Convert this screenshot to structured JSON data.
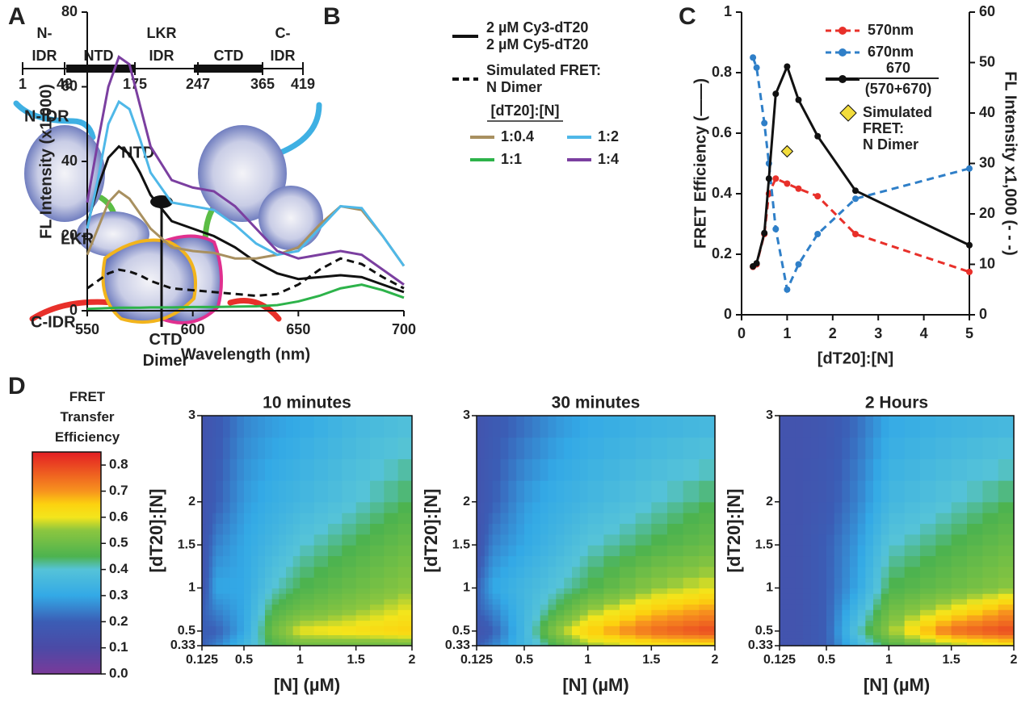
{
  "panel_labels": [
    "A",
    "B",
    "C",
    "D"
  ],
  "diagram": {
    "positions": [
      1,
      49,
      175,
      247,
      365,
      419
    ],
    "regions": [
      {
        "label": "N-\nIDR",
        "color": "#3fb0e3"
      },
      {
        "label": "NTD",
        "color": "#111111"
      },
      {
        "label": "LKR\nIDR",
        "color": "#5bbd45"
      },
      {
        "label": "CTD",
        "color": "#111111"
      },
      {
        "label": "C-\nIDR",
        "color": "#e8302a"
      }
    ],
    "structure_labels": [
      {
        "text": "N-IDR",
        "color": "#3fb0e3"
      },
      {
        "text": "NTD",
        "color": "#111111"
      },
      {
        "text": "LKR",
        "color": "#5bbd45"
      },
      {
        "text": "C-IDR",
        "color": "#e8302a"
      },
      {
        "text": "CTD\nDimer",
        "color": "#111111"
      }
    ]
  },
  "chart_data": [
    {
      "type": "line",
      "xlabel": "Wavelength (nm)",
      "ylabel": "FL Intensity (x1,000)",
      "xlim": [
        550,
        700
      ],
      "xticks": [
        550,
        600,
        650,
        700
      ],
      "ylim": [
        0,
        80
      ],
      "yticks": [
        0,
        20,
        40,
        60,
        80
      ],
      "legend_title": "[dT20]:[N]",
      "x": [
        550,
        555,
        560,
        565,
        570,
        575,
        580,
        590,
        600,
        610,
        620,
        630,
        640,
        650,
        660,
        670,
        680,
        690,
        700
      ],
      "series": [
        {
          "name": "2 µM Cy3-dT20\n2 µM Cy5-dT20",
          "color": "#111111",
          "style": "solid",
          "values": [
            23,
            33,
            41,
            44,
            42,
            37,
            31,
            24,
            22,
            20,
            17,
            13,
            10,
            8.5,
            9,
            9.5,
            9,
            7,
            5
          ]
        },
        {
          "name": "Simulated FRET:\nN Dimer",
          "color": "#111111",
          "style": "dashed",
          "values": [
            6,
            8,
            10,
            11,
            10.5,
            9.5,
            8,
            6,
            5.5,
            5,
            4.5,
            4,
            4.5,
            7,
            11,
            14,
            12.5,
            9,
            6
          ]
        },
        {
          "name": "1:0.4",
          "color": "#a89060",
          "style": "solid",
          "values": [
            15,
            22,
            29,
            32,
            30,
            26,
            22,
            17,
            16,
            15.5,
            14,
            14,
            15,
            17,
            23,
            28,
            27,
            20,
            12
          ]
        },
        {
          "name": "1:2",
          "color": "#4fb8e8",
          "style": "solid",
          "values": [
            22,
            35,
            50,
            56,
            54,
            46,
            37,
            29,
            28,
            27,
            23,
            18,
            15,
            16,
            22,
            28,
            27.5,
            20,
            12
          ]
        },
        {
          "name": "1:1",
          "color": "#2db34a",
          "style": "solid",
          "values": [
            0.5,
            0.6,
            0.7,
            0.8,
            0.8,
            0.8,
            0.9,
            0.9,
            1,
            1,
            1.1,
            1.2,
            1.5,
            2.5,
            4,
            6,
            7,
            5.5,
            3.5
          ]
        },
        {
          "name": "1:4",
          "color": "#7b3fa0",
          "style": "solid",
          "values": [
            29,
            45,
            60,
            68,
            66,
            55,
            44,
            35,
            33,
            32,
            28,
            22,
            16,
            14,
            15,
            16,
            15,
            11,
            7
          ]
        }
      ]
    },
    {
      "type": "line",
      "xlabel": "[dT20]:[N]",
      "ylabel": "FRET Efficiency (——)",
      "y2label": "FL Intensity x1,000 (- - -)",
      "xlim": [
        0,
        5
      ],
      "xticks": [
        0,
        1,
        2,
        3,
        4,
        5
      ],
      "ylim": [
        0,
        1
      ],
      "yticks": [
        0,
        0.2,
        0.4,
        0.6,
        0.8,
        1
      ],
      "y2lim": [
        0,
        60
      ],
      "y2ticks": [
        0,
        10,
        20,
        30,
        40,
        50,
        60
      ],
      "x": [
        0.25,
        0.33,
        0.5,
        0.6,
        0.75,
        1,
        1.25,
        1.67,
        2.5,
        5
      ],
      "series": [
        {
          "name": "570nm",
          "color": "#e8302a",
          "style": "dashed",
          "axis": "y2",
          "values": [
            9.5,
            10,
            16,
            24,
            27,
            26,
            25,
            23.5,
            16,
            8.5
          ]
        },
        {
          "name": "670nm",
          "color": "#2f7fc8",
          "style": "dashed",
          "axis": "y2",
          "values": [
            51,
            49,
            38,
            30,
            17,
            5,
            10,
            16,
            23,
            29
          ]
        },
        {
          "name": "670\n(570+670)",
          "color": "#111111",
          "style": "solid",
          "values": [
            0.16,
            0.17,
            0.27,
            0.45,
            0.73,
            0.82,
            0.71,
            0.59,
            0.41,
            0.23
          ]
        }
      ],
      "annotations": [
        {
          "text": "Simulated\nFRET:\nN Dimer",
          "x": 1,
          "y": 0.54,
          "color": "#f2dc3c"
        }
      ]
    },
    {
      "type": "heatmap",
      "title": "10 minutes",
      "xlabel": "[N] (µM)",
      "ylabel": "[dT20]:[N]",
      "xlim": [
        0.125,
        2
      ],
      "xticks": [
        0.125,
        0.5,
        1,
        1.5,
        2
      ],
      "ylim": [
        0.33,
        3
      ],
      "yticks": [
        0.33,
        0.5,
        1,
        1.5,
        2,
        3
      ],
      "x": [
        0.125,
        0.25,
        0.5,
        0.75,
        1,
        1.5,
        2
      ],
      "y": [
        0.33,
        0.5,
        0.75,
        1,
        1.5,
        2,
        3
      ],
      "z": [
        [
          0.2,
          0.25,
          0.35,
          0.45,
          0.5,
          0.5,
          0.5
        ],
        [
          0.2,
          0.2,
          0.3,
          0.5,
          0.6,
          0.62,
          0.65
        ],
        [
          0.2,
          0.25,
          0.3,
          0.45,
          0.5,
          0.55,
          0.6
        ],
        [
          0.15,
          0.3,
          0.3,
          0.4,
          0.45,
          0.5,
          0.55
        ],
        [
          0.15,
          0.25,
          0.3,
          0.35,
          0.4,
          0.45,
          0.5
        ],
        [
          0.15,
          0.2,
          0.28,
          0.32,
          0.35,
          0.4,
          0.45
        ],
        [
          0.15,
          0.18,
          0.25,
          0.28,
          0.3,
          0.35,
          0.38
        ]
      ]
    },
    {
      "type": "heatmap",
      "title": "30 minutes",
      "xlabel": "[N] (µM)",
      "ylabel": "[dT20]:[N]",
      "xlim": [
        0.125,
        2
      ],
      "xticks": [
        0.125,
        0.5,
        1,
        1.5,
        2
      ],
      "ylim": [
        0.33,
        3
      ],
      "yticks": [
        0.33,
        0.5,
        1,
        1.5,
        2,
        3
      ],
      "x": [
        0.125,
        0.25,
        0.5,
        0.75,
        1,
        1.5,
        2
      ],
      "y": [
        0.33,
        0.5,
        0.75,
        1,
        1.5,
        2,
        3
      ],
      "z": [
        [
          0.2,
          0.25,
          0.35,
          0.45,
          0.55,
          0.6,
          0.6
        ],
        [
          0.15,
          0.2,
          0.35,
          0.55,
          0.65,
          0.75,
          0.8
        ],
        [
          0.2,
          0.25,
          0.35,
          0.45,
          0.55,
          0.65,
          0.7
        ],
        [
          0.2,
          0.3,
          0.35,
          0.4,
          0.45,
          0.55,
          0.6
        ],
        [
          0.15,
          0.25,
          0.3,
          0.35,
          0.4,
          0.45,
          0.5
        ],
        [
          0.15,
          0.2,
          0.28,
          0.32,
          0.35,
          0.4,
          0.45
        ],
        [
          0.15,
          0.18,
          0.22,
          0.27,
          0.3,
          0.33,
          0.35
        ]
      ]
    },
    {
      "type": "heatmap",
      "title": "2 Hours",
      "xlabel": "[N] (µM)",
      "ylabel": "[dT20]:[N]",
      "xlim": [
        0.125,
        2
      ],
      "xticks": [
        0.125,
        0.5,
        1,
        1.5,
        2
      ],
      "ylim": [
        0.33,
        3
      ],
      "yticks": [
        0.33,
        0.5,
        1,
        1.5,
        2,
        3
      ],
      "x": [
        0.125,
        0.25,
        0.5,
        0.75,
        1,
        1.5,
        2
      ],
      "y": [
        0.33,
        0.5,
        0.75,
        1,
        1.5,
        2,
        3
      ],
      "z": [
        [
          0.15,
          0.15,
          0.2,
          0.35,
          0.45,
          0.55,
          0.6
        ],
        [
          0.15,
          0.15,
          0.2,
          0.4,
          0.55,
          0.75,
          0.8
        ],
        [
          0.15,
          0.15,
          0.2,
          0.35,
          0.5,
          0.6,
          0.7
        ],
        [
          0.15,
          0.15,
          0.2,
          0.3,
          0.45,
          0.5,
          0.55
        ],
        [
          0.15,
          0.15,
          0.2,
          0.28,
          0.4,
          0.45,
          0.5
        ],
        [
          0.15,
          0.15,
          0.18,
          0.25,
          0.35,
          0.4,
          0.45
        ],
        [
          0.15,
          0.15,
          0.17,
          0.22,
          0.3,
          0.33,
          0.35
        ]
      ]
    }
  ],
  "colorbar": {
    "title": "FRET\nTransfer\nEfficiency",
    "clim": [
      0,
      0.85
    ],
    "ticks": [
      {
        "value": 0,
        "label": "0.0"
      },
      0.1,
      0.2,
      0.3,
      0.4,
      0.5,
      0.6,
      0.7,
      0.8
    ],
    "colorscale": [
      [
        0,
        "#7a3a9a"
      ],
      [
        0.1,
        "#4b4aa6"
      ],
      [
        0.2,
        "#3b5db5"
      ],
      [
        0.3,
        "#33a9e6"
      ],
      [
        0.4,
        "#55c3d8"
      ],
      [
        0.45,
        "#4db34f"
      ],
      [
        0.55,
        "#8cc63f"
      ],
      [
        0.6,
        "#f3e51c"
      ],
      [
        0.65,
        "#fcd20f"
      ],
      [
        0.7,
        "#f7931e"
      ],
      [
        0.85,
        "#e31e24"
      ]
    ]
  }
}
